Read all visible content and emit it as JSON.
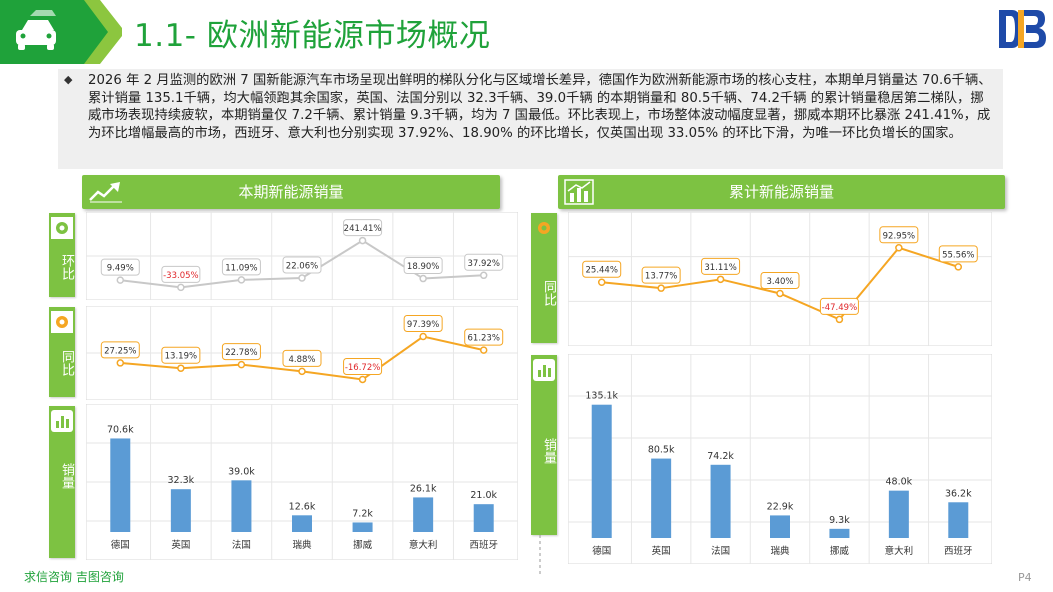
{
  "header": {
    "title": "1.1- 欧洲新能源市场概况",
    "logo_color": "#1e4aa8",
    "accent": "#1fa23a"
  },
  "summary": {
    "text": "2026 年 2 月监测的欧洲 7 国新能源汽车市场呈现出鲜明的梯队分化与区域增长差异，德国作为欧洲新能源市场的核心支柱，本期单月销量达 70.6千辆、累计销量 135.1千辆，均大幅领跑其余国家，英国、法国分别以 32.3千辆、39.0千辆 的本期销量和 80.5千辆、74.2千辆 的累计销量稳居第二梯队，挪威市场表现持续疲软，本期销量仅 7.2千辆、累计销量 9.3千辆，均为 7 国最低。环比表现上，市场整体波动幅度显著，挪威本期环比暴涨 241.41%，成为环比增幅最高的市场，西班牙、意大利也分别实现 37.92%、18.90% 的环比增长，仅英国出现 33.05% 的环比下滑，为唯一环比负增长的国家。"
  },
  "left_panel": {
    "header": "本期新能源销量",
    "tabs": {
      "mom": "环比",
      "yoy": "同比",
      "sales": "销量"
    }
  },
  "right_panel": {
    "header": "累计新能源销量",
    "tabs": {
      "yoy": "同比",
      "sales": "销量"
    }
  },
  "footer": {
    "brand": "求信咨询  吉图咨询",
    "page": "P4"
  },
  "colors": {
    "green": "#7dc242",
    "bar": "#5b9bd5",
    "orange_line": "#f5a623",
    "grey_line": "#c8c8c8",
    "negative": "#e0262a"
  },
  "chart_data": [
    {
      "id": "current-mom",
      "type": "line",
      "categories": [
        "德国",
        "英国",
        "法国",
        "瑞典",
        "挪威",
        "意大利",
        "西班牙"
      ],
      "values": [
        9.49,
        -33.05,
        11.09,
        22.06,
        241.41,
        18.9,
        37.92
      ],
      "labels": [
        "9.49%",
        "-33.05%",
        "11.09%",
        "22.06%",
        "241.41%",
        "18.90%",
        "37.92%"
      ],
      "ylim": [
        -60,
        280
      ]
    },
    {
      "id": "current-yoy",
      "type": "line",
      "categories": [
        "德国",
        "英国",
        "法国",
        "瑞典",
        "挪威",
        "意大利",
        "西班牙"
      ],
      "values": [
        27.25,
        13.19,
        22.78,
        4.88,
        -16.72,
        97.39,
        61.23
      ],
      "labels": [
        "27.25%",
        "13.19%",
        "22.78%",
        "4.88%",
        "-16.72%",
        "97.39%",
        "61.23%"
      ],
      "ylim": [
        -50,
        120
      ]
    },
    {
      "id": "current-sales",
      "type": "bar",
      "categories": [
        "德国",
        "英国",
        "法国",
        "瑞典",
        "挪威",
        "意大利",
        "西班牙"
      ],
      "values": [
        70.6,
        32.3,
        39.0,
        12.6,
        7.2,
        26.1,
        21.0
      ],
      "labels": [
        "70.6k",
        "32.3k",
        "39.0k",
        "12.6k",
        "7.2k",
        "26.1k",
        "21.0k"
      ],
      "ylim": [
        0,
        80
      ]
    },
    {
      "id": "cumulative-yoy",
      "type": "line",
      "categories": [
        "德国",
        "英国",
        "法国",
        "瑞典",
        "挪威",
        "意大利",
        "西班牙"
      ],
      "values": [
        25.44,
        13.77,
        31.11,
        3.4,
        -47.49,
        92.95,
        55.56
      ],
      "labels": [
        "25.44%",
        "13.77%",
        "31.11%",
        "3.40%",
        "-47.49%",
        "92.95%",
        "55.56%"
      ],
      "ylim": [
        -80,
        120
      ]
    },
    {
      "id": "cumulative-sales",
      "type": "bar",
      "categories": [
        "德国",
        "英国",
        "法国",
        "瑞典",
        "挪威",
        "意大利",
        "西班牙"
      ],
      "values": [
        135.1,
        80.5,
        74.2,
        22.9,
        9.3,
        48.0,
        36.2
      ],
      "labels": [
        "135.1k",
        "80.5k",
        "74.2k",
        "22.9k",
        "9.3k",
        "48.0k",
        "36.2k"
      ],
      "ylim": [
        0,
        150
      ]
    }
  ]
}
